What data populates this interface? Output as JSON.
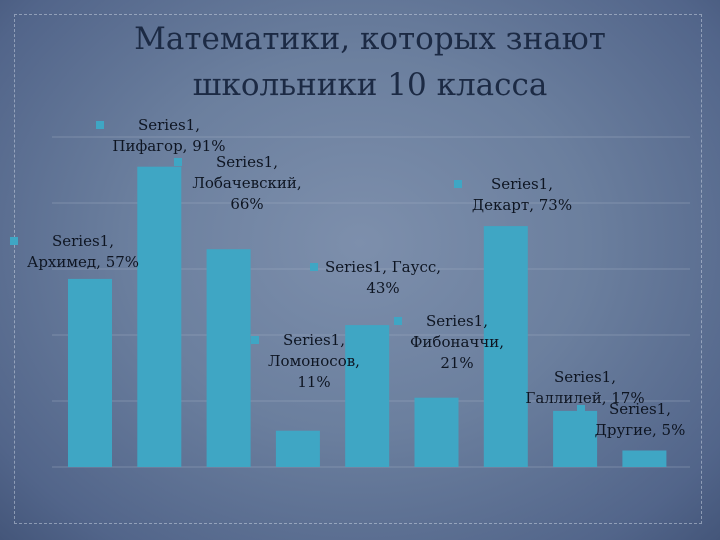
{
  "title": "Математики, которых знают\nшкольники 10 класса",
  "colors": {
    "bar": "#3fa6c4",
    "title": "#1c2a44",
    "grid": "#a6b2c6"
  },
  "chart_data": {
    "type": "bar",
    "title": "Математики, которых знают школьники 10 класса",
    "categories": [
      "Архимед",
      "Пифагор",
      "Лобачевский",
      "Ломоносов",
      "Гаусс",
      "Фибоначчи",
      "Декарт",
      "Галлилей",
      "Другие"
    ],
    "series": [
      {
        "name": "Series1",
        "values": [
          0.57,
          0.91,
          0.66,
          0.11,
          0.43,
          0.21,
          0.73,
          0.17,
          0.05
        ]
      }
    ],
    "data_labels": [
      "Series1,\nАрхимед, 57%",
      "Series1,\nПифагор, 91%",
      "Series1,\nЛобачевский,\n66%",
      "Series1,\nЛомоносов,\n11%",
      "Series1, Гаусс,\n43%",
      "Series1,\nФибоначчи,\n21%",
      "Series1,\nДекарт, 73%",
      "Series1,\nГаллилей, 17%",
      "Series1,\nДругие, 5%"
    ],
    "ylim": [
      0,
      1
    ],
    "grid": true,
    "legend": "none"
  }
}
